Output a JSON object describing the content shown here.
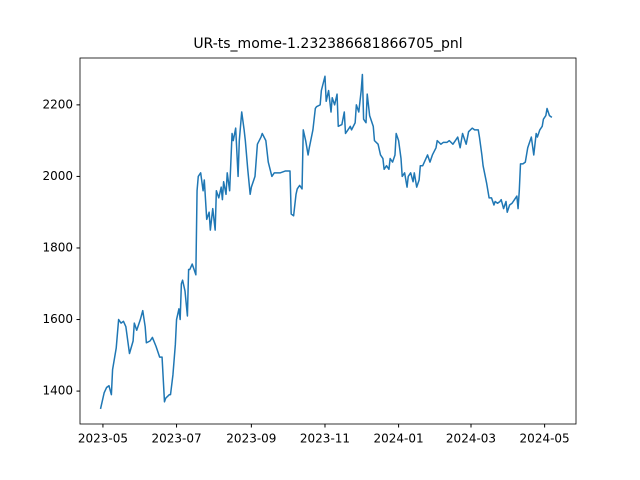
{
  "chart_data": {
    "type": "line",
    "title": "UR-ts_mome-1.232386681866705_pnl",
    "x": [
      19476,
      19479,
      19481,
      19483,
      19485,
      19486,
      19489,
      19491,
      19493,
      19495,
      19497,
      19499,
      19500,
      19503,
      19504,
      19506,
      19509,
      19511,
      19513,
      19514,
      19517,
      19519,
      19522,
      19524,
      19525,
      19527,
      19529,
      19530,
      19533,
      19534,
      19536,
      19538,
      19539,
      19541,
      19542,
      19543,
      19544,
      19546,
      19548,
      19549,
      19550,
      19552,
      19553,
      19555,
      19556,
      19557,
      19559,
      19561,
      19562,
      19564,
      19566,
      19567,
      19569,
      19571,
      19572,
      19574,
      19576,
      19577,
      19578,
      19580,
      19581,
      19583,
      19585,
      19586,
      19588,
      19590,
      19591,
      19593,
      19595,
      19596,
      19598,
      19600,
      19601,
      19604,
      19606,
      19609,
      19610,
      19613,
      19615,
      19618,
      19620,
      19625,
      19629,
      19633,
      19634,
      19636,
      19638,
      19639,
      19641,
      19643,
      19644,
      19646,
      19648,
      19649,
      19652,
      19654,
      19655,
      19658,
      19659,
      19662,
      19663,
      19665,
      19667,
      19668,
      19670,
      19672,
      19673,
      19676,
      19678,
      19679,
      19681,
      19683,
      19684,
      19687,
      19688,
      19690,
      19692,
      19693,
      19694,
      19696,
      19697,
      19699,
      19702,
      19703,
      19706,
      19708,
      19710,
      19711,
      19713,
      19715,
      19716,
      19718,
      19720,
      19721,
      19723,
      19725,
      19726,
      19728,
      19730,
      19731,
      19733,
      19735,
      19736,
      19738,
      19740,
      19741,
      19743,
      19745,
      19747,
      19749,
      19751,
      19754,
      19755,
      19758,
      19760,
      19763,
      19765,
      19768,
      19770,
      19772,
      19774,
      19776,
      19779,
      19781,
      19784,
      19786,
      19789,
      19790,
      19792,
      19793,
      19796,
      19798,
      19800,
      19802,
      19803,
      19805,
      19807,
      19808,
      19810,
      19812,
      19813,
      19815,
      19817,
      19819,
      19821,
      19822,
      19823,
      19824,
      19826,
      19828,
      19830,
      19832,
      19833,
      19835,
      19837,
      19838,
      19840,
      19842,
      19843,
      19845,
      19846,
      19848,
      19850
    ],
    "series": [
      {
        "color": "#1f77b4",
        "values": [
          1350,
          1395,
          1410,
          1415,
          1390,
          1460,
          1520,
          1600,
          1590,
          1595,
          1580,
          1530,
          1505,
          1540,
          1590,
          1570,
          1600,
          1625,
          1580,
          1535,
          1540,
          1550,
          1525,
          1505,
          1495,
          1495,
          1370,
          1380,
          1390,
          1390,
          1445,
          1530,
          1600,
          1630,
          1600,
          1700,
          1710,
          1680,
          1610,
          1740,
          1740,
          1755,
          1745,
          1725,
          1960,
          2000,
          2010,
          1960,
          1990,
          1880,
          1900,
          1850,
          1910,
          1850,
          1960,
          1940,
          1970,
          1935,
          1985,
          1950,
          2010,
          1960,
          2120,
          2100,
          2135,
          2000,
          2100,
          2180,
          2130,
          2100,
          2020,
          1950,
          1970,
          2000,
          2090,
          2110,
          2120,
          2100,
          2040,
          2000,
          2010,
          2010,
          2015,
          2015,
          1895,
          1890,
          1950,
          1965,
          1975,
          1965,
          2130,
          2100,
          2060,
          2080,
          2130,
          2190,
          2195,
          2200,
          2240,
          2280,
          2210,
          2240,
          2180,
          2220,
          2200,
          2230,
          2140,
          2145,
          2180,
          2120,
          2130,
          2140,
          2130,
          2150,
          2200,
          2180,
          2240,
          2285,
          2160,
          2150,
          2230,
          2170,
          2140,
          2100,
          2090,
          2060,
          2050,
          2020,
          2030,
          2020,
          2050,
          2040,
          2060,
          2120,
          2100,
          2050,
          2000,
          2010,
          1970,
          2000,
          2010,
          1985,
          2010,
          1970,
          1990,
          2030,
          2030,
          2045,
          2060,
          2040,
          2060,
          2080,
          2100,
          2090,
          2095,
          2095,
          2100,
          2090,
          2100,
          2110,
          2080,
          2120,
          2090,
          2125,
          2135,
          2130,
          2130,
          2110,
          2060,
          2030,
          1980,
          1940,
          1940,
          1920,
          1930,
          1925,
          1930,
          1935,
          1910,
          1930,
          1900,
          1920,
          1925,
          1935,
          1945,
          1910,
          1960,
          2035,
          2035,
          2040,
          2080,
          2100,
          2110,
          2060,
          2120,
          2110,
          2130,
          2140,
          2160,
          2170,
          2190,
          2170,
          2165
        ]
      }
    ],
    "xlim": [
      19459,
      19870
    ],
    "xticks": [
      {
        "value": 19478,
        "label": "2023-05"
      },
      {
        "value": 19539,
        "label": "2023-07"
      },
      {
        "value": 19601,
        "label": "2023-09"
      },
      {
        "value": 19662,
        "label": "2023-11"
      },
      {
        "value": 19723,
        "label": "2024-01"
      },
      {
        "value": 19783,
        "label": "2024-03"
      },
      {
        "value": 19844,
        "label": "2024-05"
      }
    ],
    "ylim": [
      1308,
      2331
    ],
    "yticks": [
      1400,
      1600,
      1800,
      2000,
      2200
    ]
  }
}
